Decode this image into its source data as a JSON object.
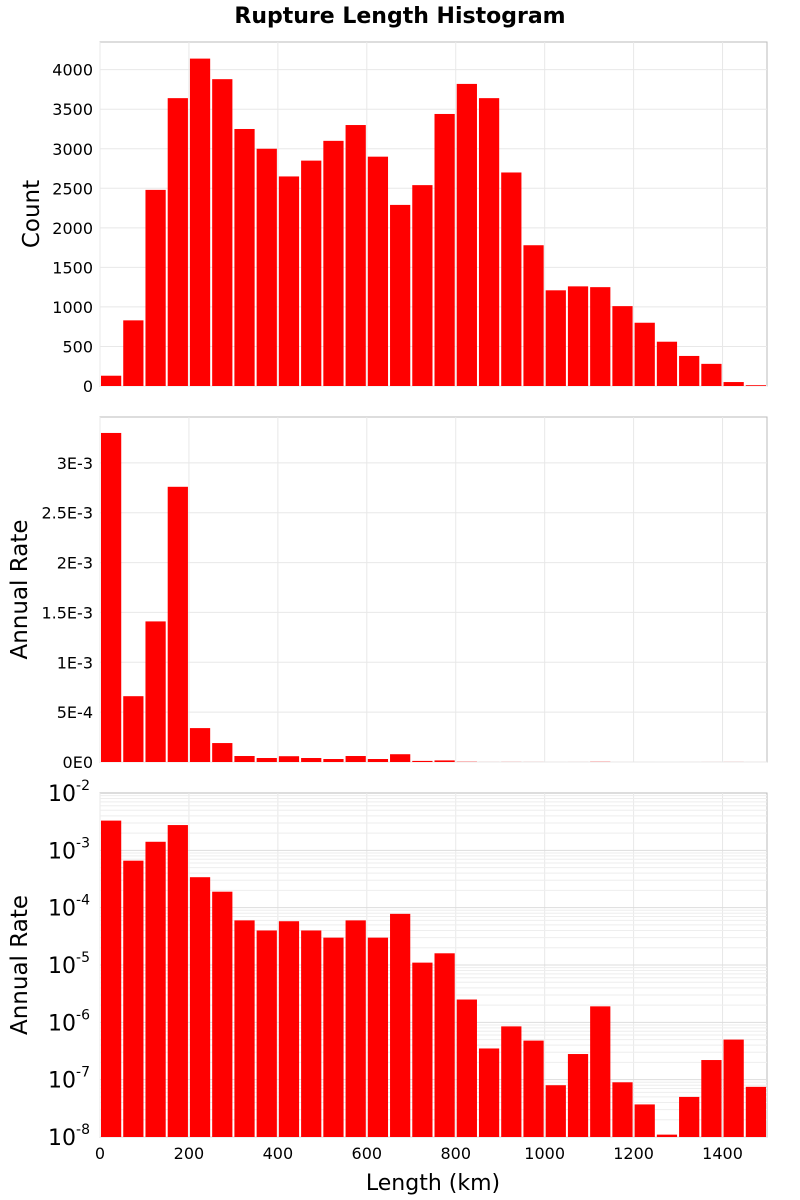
{
  "title": "Rupture Length Histogram",
  "chart_data": {
    "type": "bar",
    "title": "Rupture Length Histogram",
    "xlabel": "Length (km)",
    "xlim": [
      0,
      1500
    ],
    "bin_width": 50,
    "x_ticks": [
      0,
      200,
      400,
      600,
      800,
      1000,
      1200,
      1400
    ],
    "x_tick_labels": [
      "0",
      "200",
      "400",
      "600",
      "800",
      "1000",
      "1200",
      "1400"
    ],
    "bar_color": "#ff0000",
    "grid": true,
    "panels": [
      {
        "ylabel": "Count",
        "scale": "linear",
        "ylim": [
          0,
          4350
        ],
        "y_ticks": [
          0,
          500,
          1000,
          1500,
          2000,
          2500,
          3000,
          3500,
          4000
        ],
        "y_tick_labels": [
          "0",
          "500",
          "1000",
          "1500",
          "2000",
          "2500",
          "3000",
          "3500",
          "4000"
        ],
        "values": [
          130,
          830,
          2480,
          3640,
          4140,
          3880,
          3250,
          3000,
          2650,
          2850,
          3100,
          3300,
          2900,
          2290,
          2540,
          3440,
          3820,
          3640,
          2700,
          1780,
          1210,
          1260,
          1250,
          1010,
          800,
          560,
          380,
          280,
          50,
          10
        ]
      },
      {
        "ylabel": "Annual Rate",
        "scale": "linear",
        "ylim": [
          0,
          0.00346
        ],
        "y_ticks": [
          0,
          0.0005,
          0.001,
          0.0015,
          0.002,
          0.0025,
          0.003
        ],
        "y_tick_labels": [
          "0E0",
          "5E-4",
          "1E-3",
          "1.5E-3",
          "2E-3",
          "2.5E-3",
          "3E-3"
        ],
        "values": [
          0.0033,
          0.00066,
          0.00141,
          0.00276,
          0.00034,
          0.00019,
          6e-05,
          4e-05,
          5.8e-05,
          4e-05,
          3e-05,
          6e-05,
          3e-05,
          7.8e-05,
          1.1e-05,
          1.6e-05,
          2.5e-06,
          3.5e-07,
          8.5e-07,
          4.8e-07,
          8e-08,
          2.8e-07,
          1.9e-06,
          9e-08,
          3.7e-08,
          1.1e-08,
          5e-08,
          2.2e-07,
          5e-07,
          7.5e-08
        ]
      },
      {
        "ylabel": "Annual Rate",
        "scale": "log",
        "ylim": [
          1e-08,
          0.01
        ],
        "y_tick_exponents": [
          -8,
          -7,
          -6,
          -5,
          -4,
          -3,
          -2
        ],
        "y_tick_base": "10",
        "values": [
          0.0033,
          0.00066,
          0.00141,
          0.00276,
          0.00034,
          0.00019,
          6e-05,
          4e-05,
          5.8e-05,
          4e-05,
          3e-05,
          6e-05,
          3e-05,
          7.8e-05,
          1.1e-05,
          1.6e-05,
          2.5e-06,
          3.5e-07,
          8.5e-07,
          4.8e-07,
          8e-08,
          2.8e-07,
          1.9e-06,
          9e-08,
          3.7e-08,
          1.1e-08,
          5e-08,
          2.2e-07,
          5e-07,
          7.5e-08
        ]
      }
    ]
  }
}
